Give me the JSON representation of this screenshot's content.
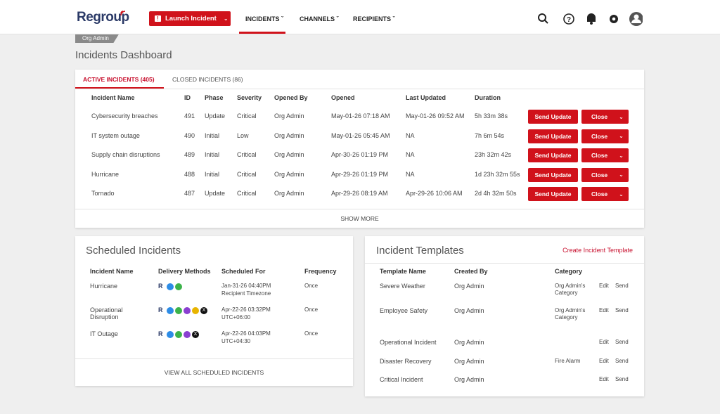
{
  "nav": {
    "logo": "Regroup",
    "launch": "Launch Incident",
    "menu": [
      "INCIDENTS",
      "CHANNELS",
      "RECIPIENTS"
    ]
  },
  "badge": "Org Admin",
  "page_title": "Incidents Dashboard",
  "active": {
    "tabs": [
      "ACTIVE INCIDENTS (405)",
      "CLOSED INCIDENTS (86)"
    ],
    "columns": [
      "Incident Name",
      "ID",
      "Phase",
      "Severity",
      "Opened By",
      "Opened",
      "Last Updated",
      "Duration"
    ],
    "rows": [
      [
        "Cybersecurity breaches",
        491,
        "Update",
        "Critical",
        "Org Admin",
        "May-01-26 07:18 AM",
        "May-01-26 09:52 AM",
        "5h 33m 38s"
      ],
      [
        "IT system outage",
        490,
        "Initial",
        "Low",
        "Org Admin",
        "May-01-26 05:45 AM",
        "NA",
        "7h 6m 54s"
      ],
      [
        "Supply chain disruptions",
        489,
        "Initial",
        "Critical",
        "Org Admin",
        "Apr-30-26 01:19 PM",
        "NA",
        "23h 32m 42s"
      ],
      [
        "Hurricane",
        488,
        "Initial",
        "Critical",
        "Org Admin",
        "Apr-29-26 01:19 PM",
        "NA",
        "1d 23h 32m 55s"
      ],
      [
        "Tornado",
        487,
        "Update",
        "Critical",
        "Org Admin",
        "Apr-29-26 08:19 AM",
        "Apr-29-26 10:06 AM",
        "2d 4h 32m 50s"
      ]
    ],
    "actions": [
      "Send Update",
      "Close"
    ],
    "show_more": "SHOW MORE"
  },
  "scheduled": {
    "title": "Scheduled Incidents",
    "columns": [
      "Incident Name",
      "Delivery Methods",
      "Scheduled For",
      "Frequency"
    ],
    "rows": [
      {
        "name": "Hurricane",
        "scheduled_for": [
          "Jan-31-26 04:40PM",
          "Recipient Timezone"
        ],
        "frequency": "Once"
      },
      {
        "name": "Operational Disruption",
        "scheduled_for": [
          "Apr-22-26 03:32PM",
          "UTC+06:00"
        ],
        "frequency": "Once"
      },
      {
        "name": "IT Outage",
        "scheduled_for": [
          "Apr-22-26 04:03PM",
          "UTC+04:30"
        ],
        "frequency": "Once"
      }
    ],
    "view_all": "VIEW ALL SCHEDULED INCIDENTS"
  },
  "templates": {
    "title": "Incident Templates",
    "create": "Create Incident Template",
    "columns": [
      "Template Name",
      "Created By",
      "Category"
    ],
    "rows": [
      {
        "name": "Severe Weather",
        "created_by": "Org Admin",
        "category": "Org Admin's Category"
      },
      {
        "name": "Employee Safety",
        "created_by": "Org Admin",
        "category": "Org Admin's Category"
      },
      {
        "name": "Operational Incident",
        "created_by": "Org Admin"
      },
      {
        "name": "Disaster Recovery",
        "created_by": "Org Admin",
        "category": "Fire Alarm"
      },
      {
        "name": "Critical Incident",
        "created_by": "Org Admin"
      }
    ],
    "actions": [
      "Edit",
      "Send"
    ]
  }
}
